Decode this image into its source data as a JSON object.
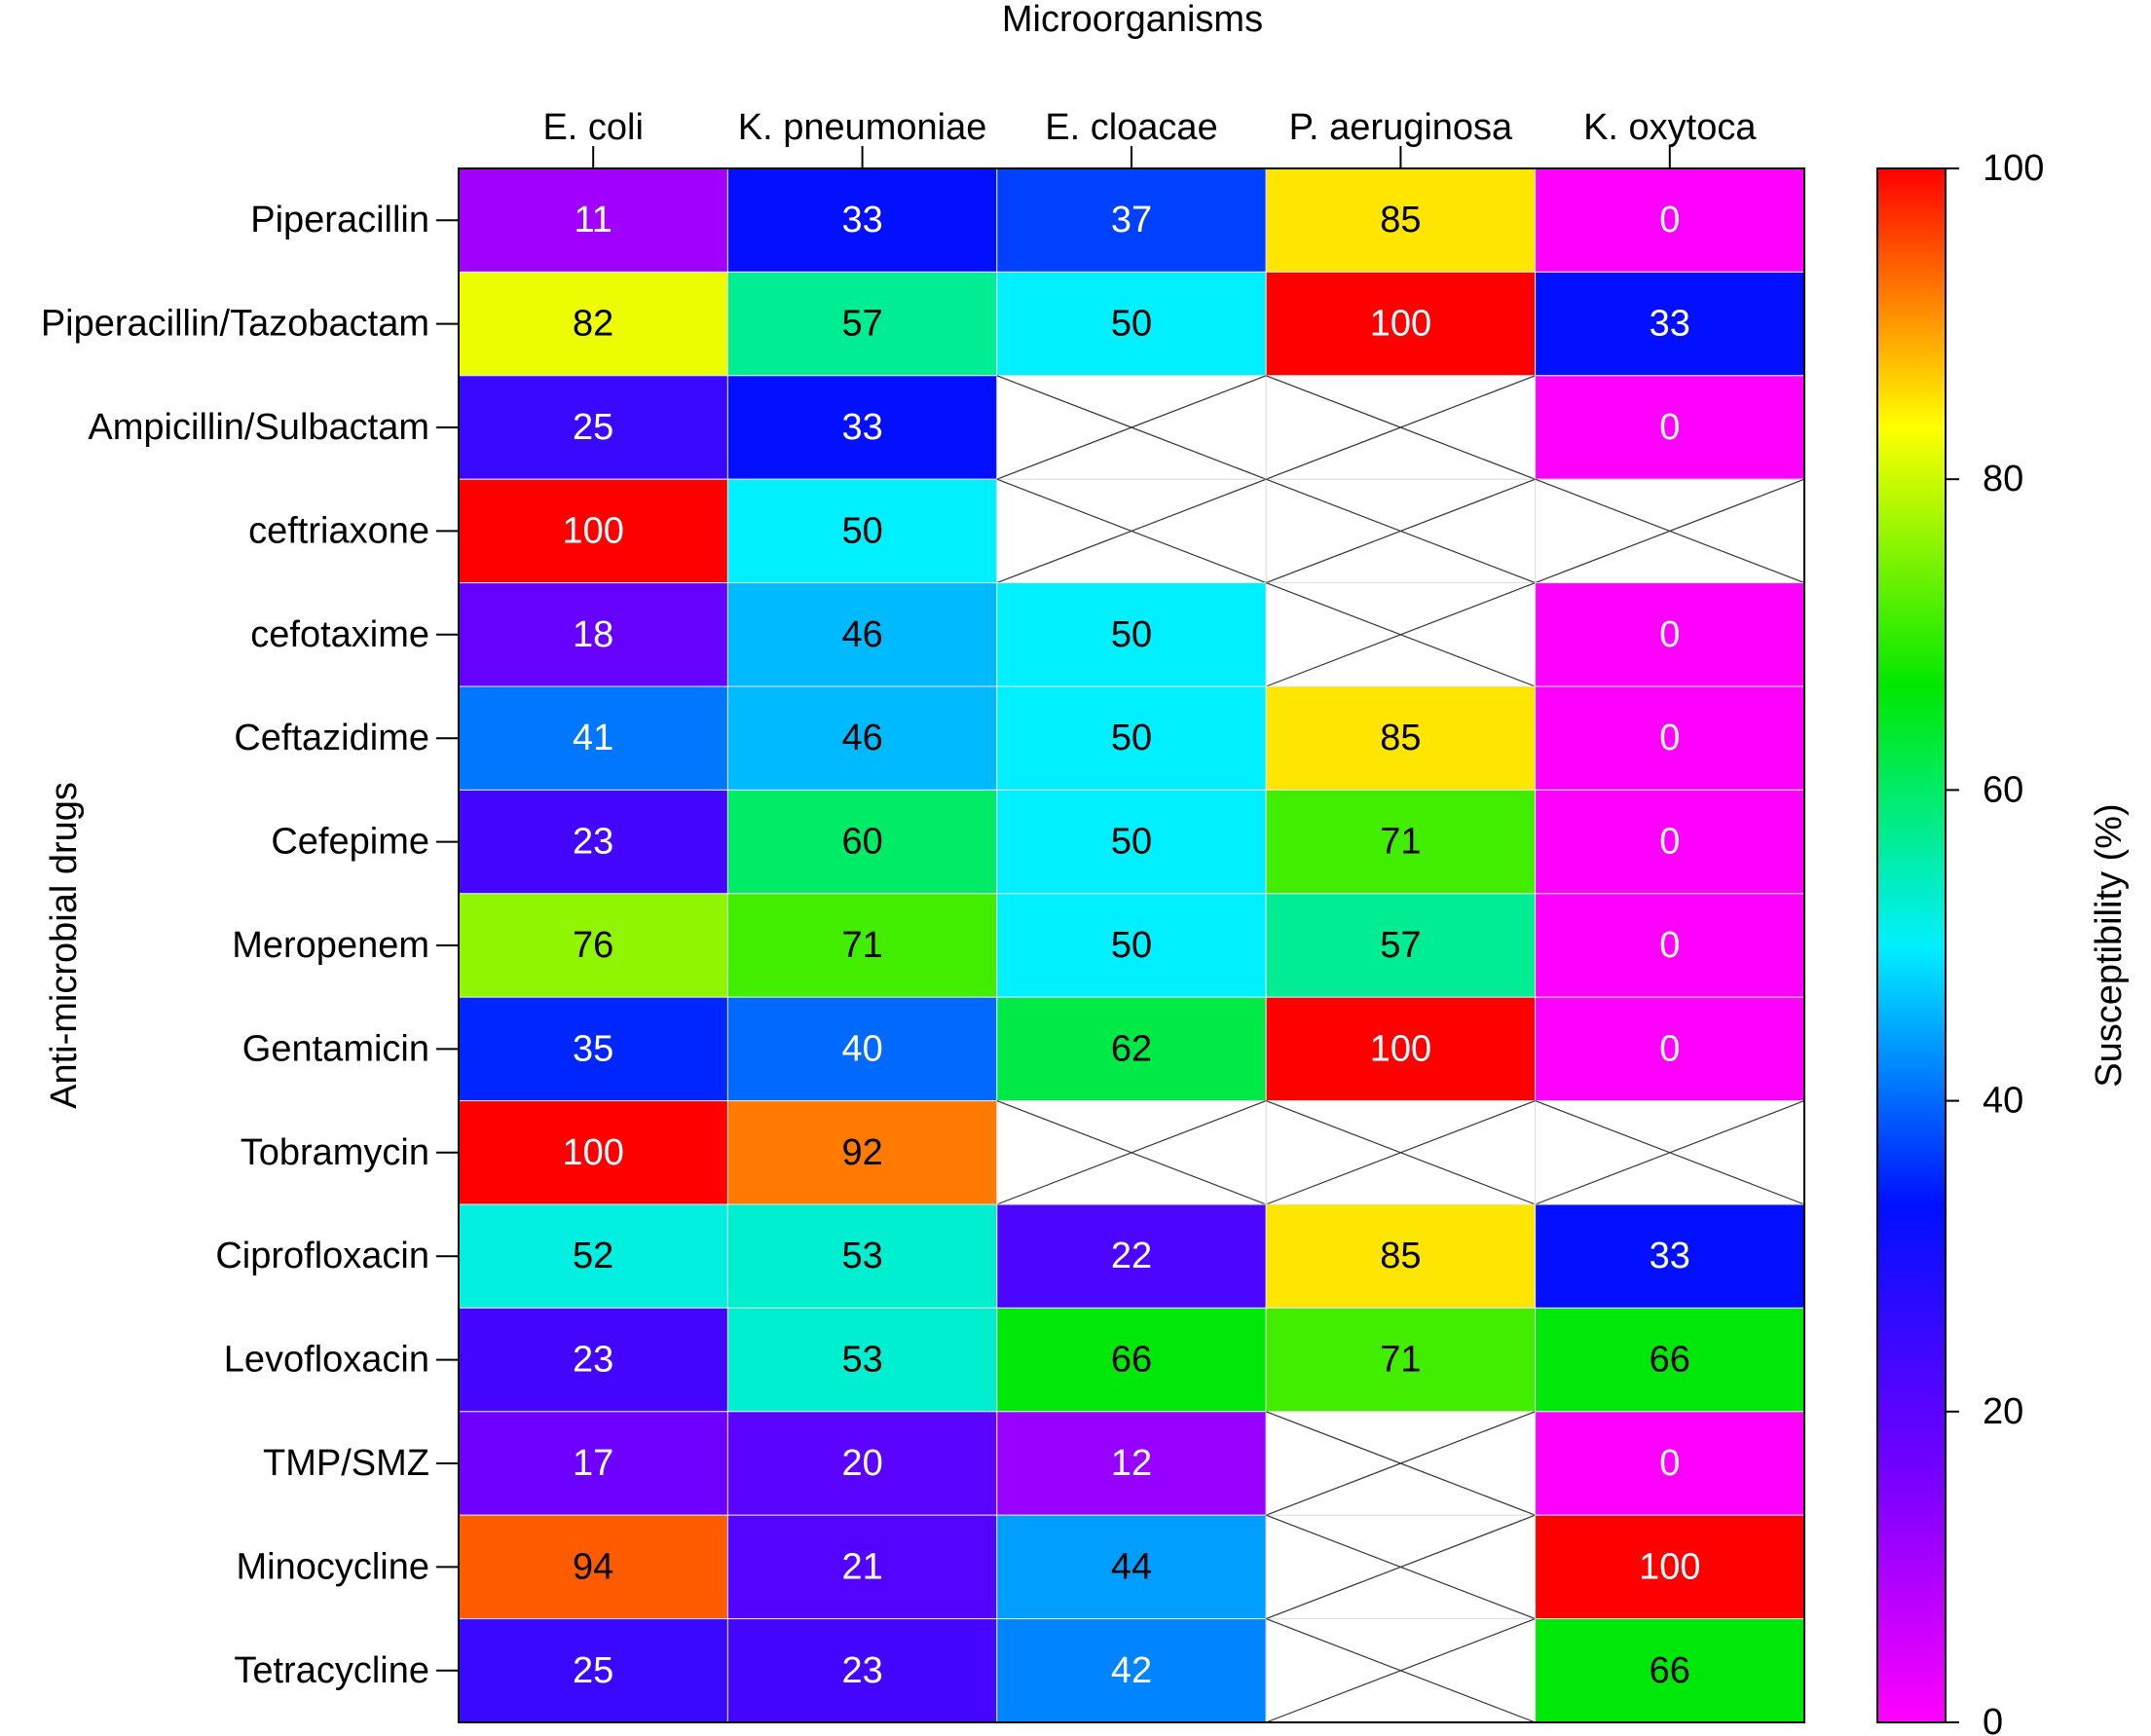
{
  "chart_data": {
    "type": "heatmap",
    "title": "Microorganisms",
    "xlabel": "Microorganisms",
    "ylabel": "Anti-microbial drugs",
    "colorbar_label": "Susceptibility (%)",
    "colorbar_range": [
      0,
      100
    ],
    "colorbar_ticks": [
      "0",
      "20",
      "40",
      "60",
      "80",
      "100"
    ],
    "colormap": [
      "#ff00ff",
      "#7000ff",
      "#0010ff",
      "#00f0ff",
      "#00e800",
      "#ffff00",
      "#ff0000"
    ],
    "columns": [
      "E. coli",
      "K. pneumoniae",
      "E. cloacae",
      "P. aeruginosa",
      "K. oxytoca"
    ],
    "rows": [
      "Piperacillin",
      "Piperacillin/Tazobactam",
      "Ampicillin/Sulbactam",
      "ceftriaxone",
      "cefotaxime",
      "Ceftazidime",
      "Cefepime",
      "Meropenem",
      "Gentamicin",
      "Tobramycin",
      "Ciprofloxacin",
      "Levofloxacin",
      "TMP/SMZ",
      "Minocycline",
      "Tetracycline"
    ],
    "values": [
      [
        11,
        33,
        37,
        85,
        0
      ],
      [
        82,
        57,
        50,
        100,
        33
      ],
      [
        25,
        33,
        null,
        null,
        0
      ],
      [
        100,
        50,
        null,
        null,
        null
      ],
      [
        18,
        46,
        50,
        null,
        0
      ],
      [
        41,
        46,
        50,
        85,
        0
      ],
      [
        23,
        60,
        50,
        71,
        0
      ],
      [
        76,
        71,
        50,
        57,
        0
      ],
      [
        35,
        40,
        62,
        100,
        0
      ],
      [
        100,
        92,
        null,
        null,
        null
      ],
      [
        52,
        53,
        22,
        85,
        33
      ],
      [
        23,
        53,
        66,
        71,
        66
      ],
      [
        17,
        20,
        12,
        null,
        0
      ],
      [
        94,
        21,
        44,
        null,
        100
      ],
      [
        25,
        23,
        42,
        null,
        66
      ]
    ],
    "missing_marker": "cross"
  }
}
